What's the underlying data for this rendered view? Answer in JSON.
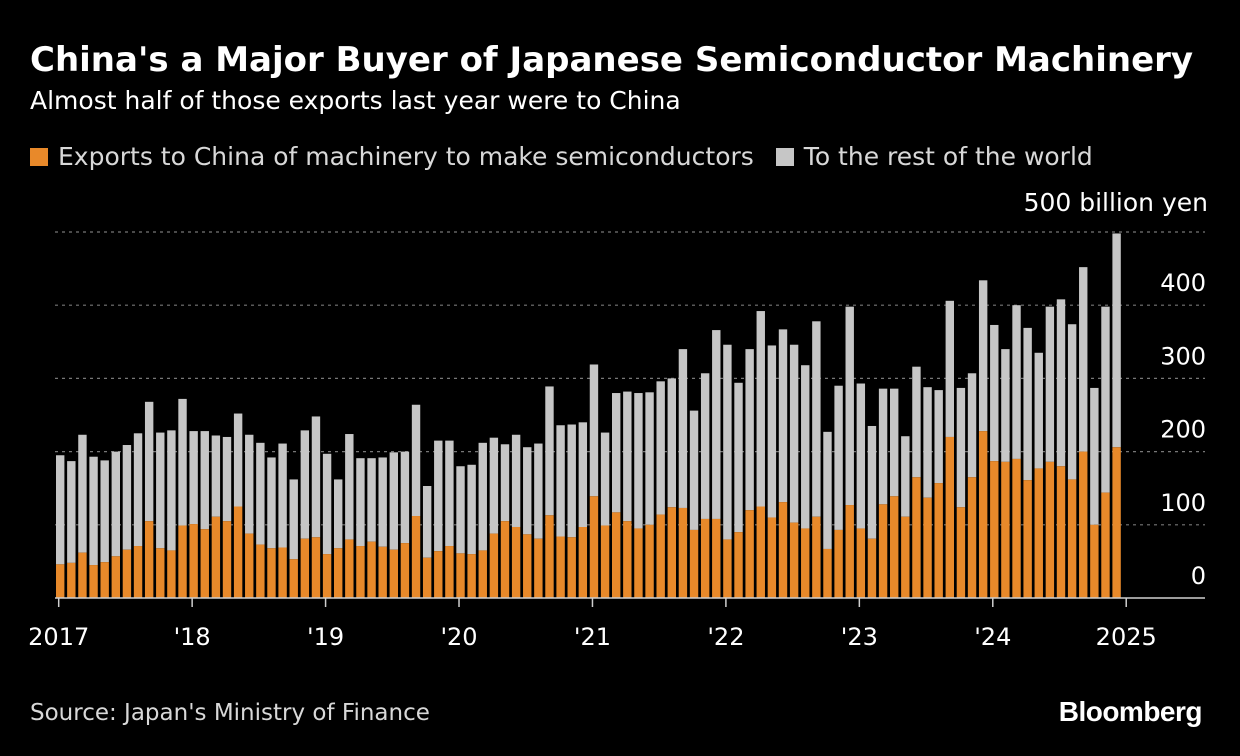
{
  "header": {
    "title": "China's a Major Buyer of Japanese Semiconductor Machinery",
    "subtitle": "Almost half of those exports last year were to China"
  },
  "legend": {
    "china": "Exports to China of machinery to make semiconductors",
    "rest": "To the rest of the world"
  },
  "unit_label": "500 billion yen",
  "footer": {
    "source": "Source: Japan's Ministry of Finance",
    "brand": "Bloomberg"
  },
  "colors": {
    "background": "#000000",
    "china": "#e8892a",
    "rest": "#c6c6c6",
    "grid": "#777777",
    "axis": "#cfcfcf"
  },
  "chart_data": {
    "type": "bar",
    "stacked": true,
    "title": "China's a Major Buyer of Japanese Semiconductor Machinery",
    "ylabel": "billion yen",
    "ylim": [
      0,
      500
    ],
    "yticks": [
      0,
      100,
      200,
      300,
      400
    ],
    "ytick_labels": [
      "0",
      "100",
      "200",
      "300",
      "400"
    ],
    "grid": true,
    "xtick_labels": [
      "2017",
      "'18",
      "'19",
      "'20",
      "'21",
      "'22",
      "'23",
      "'24",
      "2025"
    ],
    "start": "2017-01",
    "series": [
      {
        "name": "Exports to China of machinery to make semiconductors",
        "values": [
          46,
          48,
          62,
          45,
          49,
          57,
          66,
          71,
          105,
          68,
          65,
          99,
          101,
          94,
          111,
          105,
          125,
          88,
          73,
          68,
          69,
          53,
          81,
          83,
          60,
          68,
          80,
          71,
          77,
          70,
          66,
          75,
          112,
          55,
          64,
          71,
          61,
          60,
          65,
          88,
          105,
          97,
          87,
          81,
          113,
          84,
          83,
          97,
          139,
          99,
          117,
          105,
          95,
          100,
          114,
          124,
          123,
          93,
          108,
          108,
          80,
          90,
          120,
          125,
          110,
          131,
          103,
          95,
          111,
          67,
          93,
          127,
          95,
          81,
          128,
          139,
          111,
          165,
          137,
          157,
          220,
          124,
          165,
          228,
          187,
          186,
          190,
          161,
          177,
          186,
          180,
          162,
          200,
          100,
          144,
          206
        ],
        "total": [
          195,
          187,
          223,
          193,
          188,
          200,
          209,
          225,
          268,
          226,
          229,
          272,
          228,
          228,
          222,
          220,
          252,
          223,
          212,
          192,
          211,
          162,
          229,
          248,
          197,
          162,
          224,
          191,
          191,
          192,
          199,
          200,
          264,
          153,
          215,
          215,
          180,
          182,
          212,
          219,
          210,
          223,
          206,
          211,
          289,
          236,
          237,
          240,
          319,
          226,
          280,
          282,
          280,
          281,
          296,
          300,
          340,
          256,
          307,
          366,
          346,
          294,
          340,
          392,
          345,
          367,
          346,
          318,
          378,
          227,
          290,
          398,
          293,
          235,
          286,
          286,
          221,
          316,
          288,
          284,
          406,
          287,
          307,
          434,
          373,
          340,
          400,
          369,
          335,
          398,
          408,
          374,
          452,
          287,
          398,
          498
        ]
      },
      {
        "name": "To the rest of the world",
        "derived_from": "total - China"
      }
    ]
  }
}
